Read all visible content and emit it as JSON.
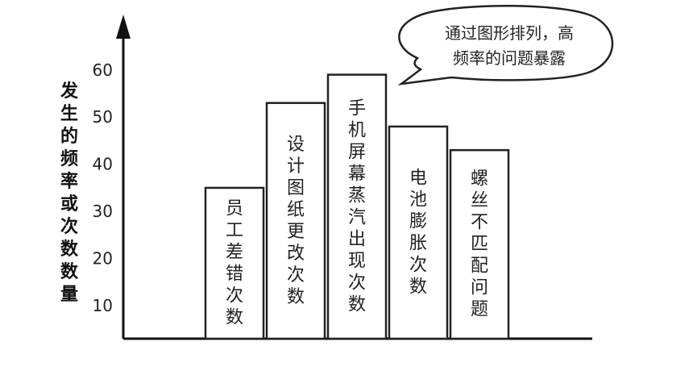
{
  "chart_data": {
    "type": "bar",
    "categories": [
      "员工差错次数",
      "设计图纸更改次数",
      "手机屏幕蒸汽出现次数",
      "电池膨胀次数",
      "螺丝不匹配问题"
    ],
    "values": [
      35,
      53,
      59,
      48,
      43
    ],
    "yticks": [
      10,
      20,
      30,
      40,
      50,
      60
    ],
    "ylim": [
      3,
      68
    ],
    "ylabel": "发生的频率或次数数量",
    "title": "",
    "xlabel": "",
    "annotation": {
      "lines": [
        "通过图形排列，高",
        "频率的问题暴露"
      ]
    },
    "colors": {
      "bar_fill": "#ffffff",
      "bar_stroke": "#222222",
      "axis": "#111111"
    }
  }
}
